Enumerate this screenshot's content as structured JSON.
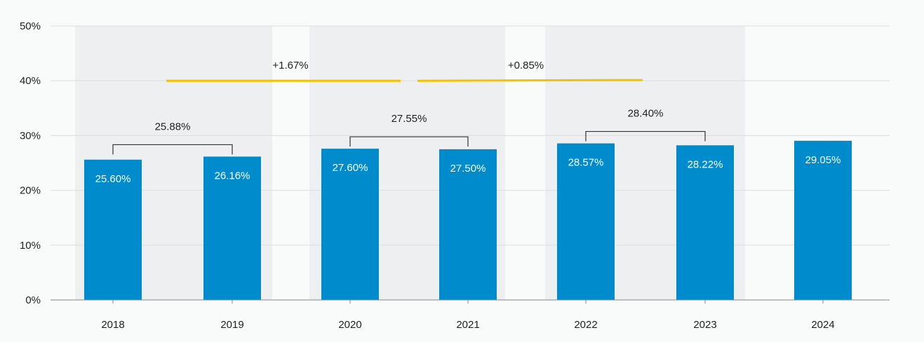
{
  "chart_data": {
    "type": "bar",
    "title": "",
    "xlabel": "",
    "ylabel": "",
    "ylim": [
      0,
      50
    ],
    "yticks": [
      0,
      10,
      20,
      30,
      40,
      50
    ],
    "ytick_labels": [
      "0%",
      "10%",
      "20%",
      "30%",
      "40%",
      "50%"
    ],
    "categories": [
      "2018",
      "2019",
      "2020",
      "2021",
      "2022",
      "2023",
      "2024"
    ],
    "values": [
      25.6,
      26.16,
      27.6,
      27.5,
      28.57,
      28.22,
      29.05
    ],
    "value_labels": [
      "25.60%",
      "26.16%",
      "27.60%",
      "27.50%",
      "28.57%",
      "28.22%",
      "29.05%"
    ],
    "grid": true,
    "period_shading": [
      {
        "from": "2018",
        "to": "2019"
      },
      {
        "from": "2020",
        "to": "2021"
      },
      {
        "from": "2022",
        "to": "2023"
      }
    ],
    "pair_averages": [
      {
        "from": "2018",
        "to": "2019",
        "value": 25.88,
        "label": "25.88%"
      },
      {
        "from": "2020",
        "to": "2021",
        "value": 27.55,
        "label": "27.55%"
      },
      {
        "from": "2022",
        "to": "2023",
        "value": 28.4,
        "label": "28.40%"
      }
    ],
    "changes": [
      {
        "from": "2018-2019",
        "to": "2020-2021",
        "label": "+1.67%"
      },
      {
        "from": "2020-2021",
        "to": "2022-2023",
        "label": "+0.85%"
      }
    ],
    "colors": {
      "bar": "#008ccc",
      "shading": "#eeeff1",
      "change_line": "#f5c100",
      "bracket": "#333333",
      "grid": "#dddddd"
    }
  }
}
